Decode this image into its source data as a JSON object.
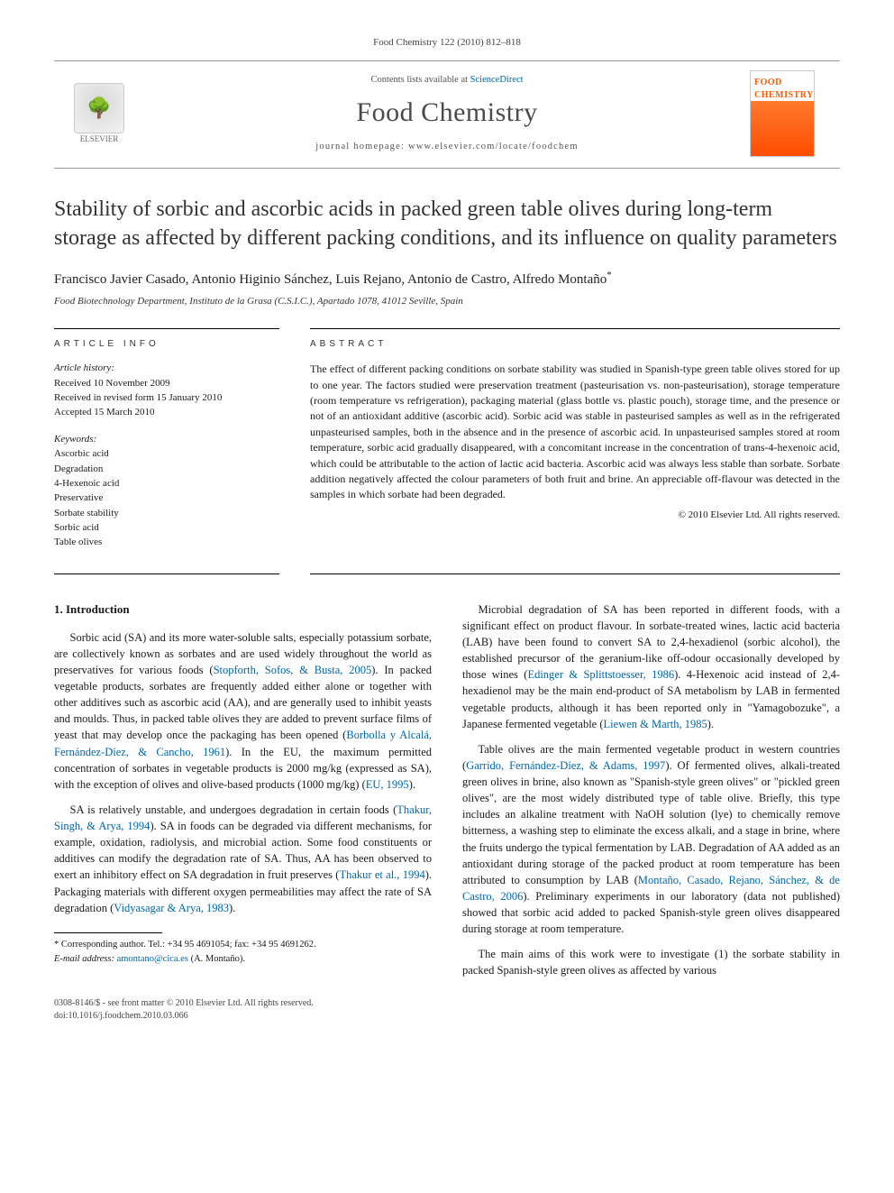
{
  "running_head": "Food Chemistry 122 (2010) 812–818",
  "masthead": {
    "contents_prefix": "Contents lists available at ",
    "contents_link": "ScienceDirect",
    "journal": "Food Chemistry",
    "homepage_prefix": "journal homepage: ",
    "homepage": "www.elsevier.com/locate/foodchem",
    "publisher_label": "ELSEVIER",
    "cover_line1": "FOOD",
    "cover_line2": "CHEMISTRY"
  },
  "title": "Stability of sorbic and ascorbic acids in packed green table olives during long-term storage as affected by different packing conditions, and its influence on quality parameters",
  "authors_line": "Francisco Javier Casado, Antonio Higinio Sánchez, Luis Rejano, Antonio de Castro, Alfredo Montaño",
  "corr_marker": "*",
  "affiliation": "Food Biotechnology Department, Instituto de la Grasa (C.S.I.C.), Apartado 1078, 41012 Seville, Spain",
  "article_info": {
    "heading": "ARTICLE INFO",
    "history_label": "Article history:",
    "history": [
      "Received 10 November 2009",
      "Received in revised form 15 January 2010",
      "Accepted 15 March 2010"
    ],
    "keywords_label": "Keywords:",
    "keywords": [
      "Ascorbic acid",
      "Degradation",
      "4-Hexenoic acid",
      "Preservative",
      "Sorbate stability",
      "Sorbic acid",
      "Table olives"
    ]
  },
  "abstract": {
    "heading": "ABSTRACT",
    "text": "The effect of different packing conditions on sorbate stability was studied in Spanish-type green table olives stored for up to one year. The factors studied were preservation treatment (pasteurisation vs. non-pasteurisation), storage temperature (room temperature vs refrigeration), packaging material (glass bottle vs. plastic pouch), storage time, and the presence or not of an antioxidant additive (ascorbic acid). Sorbic acid was stable in pasteurised samples as well as in the refrigerated unpasteurised samples, both in the absence and in the presence of ascorbic acid. In unpasteurised samples stored at room temperature, sorbic acid gradually disappeared, with a concomitant increase in the concentration of trans-4-hexenoic acid, which could be attributable to the action of lactic acid bacteria. Ascorbic acid was always less stable than sorbate. Sorbate addition negatively affected the colour parameters of both fruit and brine. An appreciable off-flavour was detected in the samples in which sorbate had been degraded.",
    "copyright": "© 2010 Elsevier Ltd. All rights reserved."
  },
  "section1_heading": "1. Introduction",
  "paragraphs": {
    "p1a": "Sorbic acid (SA) and its more water-soluble salts, especially potassium sorbate, are collectively known as sorbates and are used widely throughout the world as preservatives for various foods (",
    "p1_cite1": "Stopforth, Sofos, & Busta, 2005",
    "p1b": "). In packed vegetable products, sorbates are frequently added either alone or together with other additives such as ascorbic acid (AA), and are generally used to inhibit yeasts and moulds. Thus, in packed table olives they are added to prevent surface films of yeast that may develop once the packaging has been opened (",
    "p1_cite2": "Borbolla y Alcalá, Fernández-Díez, & Cancho, 1961",
    "p1c": "). In the EU, the maximum permitted concentration of sorbates in vegetable products is 2000 mg/kg (expressed as SA), with the exception of olives and olive-based products (1000 mg/kg) (",
    "p1_cite3": "EU, 1995",
    "p1d": ").",
    "p2a": "SA is relatively unstable, and undergoes degradation in certain foods (",
    "p2_cite1": "Thakur, Singh, & Arya, 1994",
    "p2b": "). SA in foods can be degraded via different mechanisms, for example, oxidation, radiolysis, and microbial action. Some food constituents or additives can modify the degradation rate of SA. Thus, AA has been observed to exert an inhibitory effect on SA degradation in fruit preserves (",
    "p2_cite2": "Thakur et al., 1994",
    "p2c": "). Packaging materials with different oxygen permeabilities may affect the rate of SA degradation (",
    "p2_cite3": "Vidyasagar & Arya, 1983",
    "p2d": ").",
    "p3a": "Microbial degradation of SA has been reported in different foods, with a significant effect on product flavour. In sorbate-treated wines, lactic acid bacteria (LAB) have been found to convert SA to 2,4-hexadienol (sorbic alcohol), the established precursor of the geranium-like off-odour occasionally developed by those wines (",
    "p3_cite1": "Edinger & Splittstoesser, 1986",
    "p3b": "). 4-Hexenoic acid instead of 2,4-hexadienol may be the main end-product of SA metabolism by LAB in fermented vegetable products, although it has been reported only in \"Yamagobozuke\", a Japanese fermented vegetable (",
    "p3_cite2": "Liewen & Marth, 1985",
    "p3c": ").",
    "p4a": "Table olives are the main fermented vegetable product in western countries (",
    "p4_cite1": "Garrido, Fernández-Díez, & Adams, 1997",
    "p4b": "). Of fermented olives, alkali-treated green olives in brine, also known as \"Spanish-style green olives\" or \"pickled green olives\", are the most widely distributed type of table olive. Briefly, this type includes an alkaline treatment with NaOH solution (lye) to chemically remove bitterness, a washing step to eliminate the excess alkali, and a stage in brine, where the fruits undergo the typical fermentation by LAB. Degradation of AA added as an antioxidant during storage of the packed product at room temperature has been attributed to consumption by LAB (",
    "p4_cite2": "Montaño, Casado, Rejano, Sánchez, & de Castro, 2006",
    "p4c": "). Preliminary experiments in our laboratory (data not published) showed that sorbic acid added to packed Spanish-style green olives disappeared during storage at room temperature.",
    "p5": "The main aims of this work were to investigate (1) the sorbate stability in packed Spanish-style green olives as affected by various"
  },
  "footnote": {
    "corr_line": "* Corresponding author. Tel.: +34 95 4691054; fax: +34 95 4691262.",
    "email_label": "E-mail address:",
    "email": "amontano@cica.es",
    "email_suffix": "(A. Montaño)."
  },
  "footer": {
    "left1": "0308-8146/$ - see front matter © 2010 Elsevier Ltd. All rights reserved.",
    "left2": "doi:10.1016/j.foodchem.2010.03.066"
  },
  "colors": {
    "link": "#0066aa",
    "cover_orange_top": "#ff7a2e",
    "cover_orange_bottom": "#ff4d00",
    "rule": "#000000",
    "text": "#1a1a1a"
  }
}
